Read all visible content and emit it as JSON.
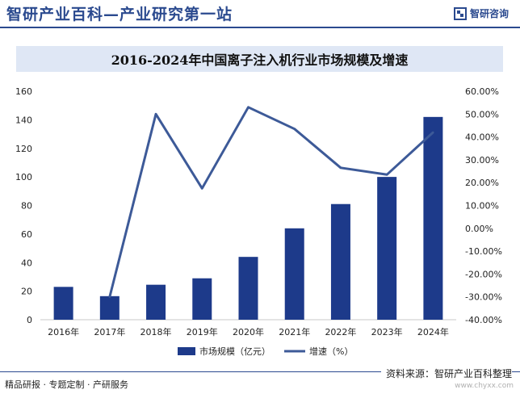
{
  "header": {
    "site_title": "智研产业百科—产业研究第一站",
    "logo_text": "智研咨询"
  },
  "colors": {
    "accent": "#2b4a8f",
    "bar": "#1d3a8a",
    "line": "#3d5a98",
    "title_bg": "#dfe7f5"
  },
  "chart_data": {
    "type": "bar",
    "title": "2016-2024年中国离子注入机行业市场规模及增速",
    "categories": [
      "2016年",
      "2017年",
      "2018年",
      "2019年",
      "2020年",
      "2021年",
      "2022年",
      "2023年",
      "2024年"
    ],
    "series": [
      {
        "name": "市场规模（亿元）",
        "type": "bar",
        "axis": "left",
        "values": [
          23,
          16.5,
          24.5,
          29,
          44,
          64,
          81,
          100,
          142
        ]
      },
      {
        "name": "增速（%）",
        "type": "line",
        "axis": "right",
        "values": [
          null,
          -30,
          50,
          17.5,
          53,
          43.5,
          26.5,
          23.5,
          42
        ]
      }
    ],
    "y_left": {
      "min": 0,
      "max": 160,
      "ticks": [
        "0",
        "20",
        "40",
        "60",
        "80",
        "100",
        "120",
        "140",
        "160"
      ]
    },
    "y_right": {
      "min": -40,
      "max": 60,
      "ticks": [
        "-40.00%",
        "-30.00%",
        "-20.00%",
        "-10.00%",
        "0.00%",
        "10.00%",
        "20.00%",
        "30.00%",
        "40.00%",
        "50.00%",
        "60.00%"
      ]
    },
    "grid": false,
    "legend_position": "bottom"
  },
  "footer": {
    "left_text": "精品研报 · 专题定制 · 产研服务",
    "source": "资料来源：智研产业百科整理",
    "url": "www.chyxx.com"
  }
}
